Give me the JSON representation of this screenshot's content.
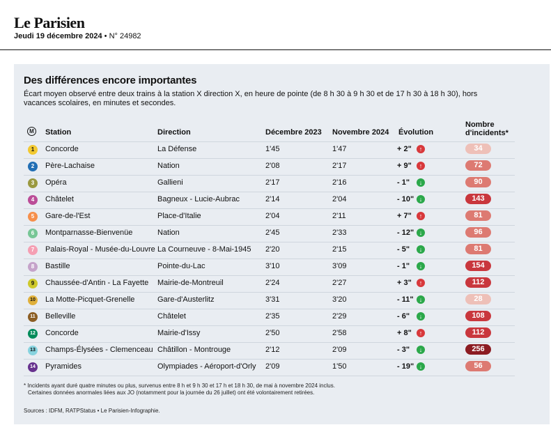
{
  "masthead": {
    "logo": "Le Parisien",
    "date": "Jeudi 19 décembre 2024",
    "separator": "•",
    "issue": "N° 24982"
  },
  "chart_data": {
    "type": "table",
    "title": "Des différences encore importantes",
    "subtitle": "Écart moyen observé entre deux trains à la station X direction X, en heure de pointe (de 8 h 30 à 9 h 30 et de 17 h 30 à 18 h 30), hors vacances scolaires, en minutes et secondes.",
    "columns": {
      "metro_symbol": "M",
      "station": "Station",
      "direction": "Direction",
      "dec2023": "Décembre 2023",
      "nov2024": "Novembre 2024",
      "evolution": "Évolution",
      "incidents_line1": "Nombre",
      "incidents_line2": "d'incidents*"
    },
    "rows": [
      {
        "line": "1",
        "line_color": "#f2c931",
        "line_text_color": "#111",
        "station": "Concorde",
        "direction": "La Défense",
        "dec2023": "1'45",
        "nov2024": "1'47",
        "evolution": "+ 2\"",
        "trend": "up",
        "incidents": 34
      },
      {
        "line": "2",
        "line_color": "#216eb4",
        "line_text_color": "#fff",
        "station": "Père-Lachaise",
        "direction": "Nation",
        "dec2023": "2'08",
        "nov2024": "2'17",
        "evolution": "+ 9\"",
        "trend": "up",
        "incidents": 72
      },
      {
        "line": "3",
        "line_color": "#9a9940",
        "line_text_color": "#fff",
        "station": "Opéra",
        "direction": "Gallieni",
        "dec2023": "2'17",
        "nov2024": "2'16",
        "evolution": "- 1\"",
        "trend": "down",
        "incidents": 90
      },
      {
        "line": "4",
        "line_color": "#bb4d98",
        "line_text_color": "#fff",
        "station": "Châtelet",
        "direction": "Bagneux - Lucie-Aubrac",
        "dec2023": "2'14",
        "nov2024": "2'04",
        "evolution": "- 10\"",
        "trend": "down",
        "incidents": 143
      },
      {
        "line": "5",
        "line_color": "#f68f4b",
        "line_text_color": "#fff",
        "station": "Gare-de-l'Est",
        "direction": "Place-d'Italie",
        "dec2023": "2'04",
        "nov2024": "2'11",
        "evolution": "+ 7\"",
        "trend": "up",
        "incidents": 81
      },
      {
        "line": "6",
        "line_color": "#77c696",
        "line_text_color": "#fff",
        "station": "Montparnasse-Bienvenüe",
        "direction": "Nation",
        "dec2023": "2'45",
        "nov2024": "2'33",
        "evolution": "- 12\"",
        "trend": "down",
        "incidents": 96
      },
      {
        "line": "7",
        "line_color": "#f59fb3",
        "line_text_color": "#fff",
        "station": "Palais-Royal - Musée-du-Louvre",
        "direction": "La Courneuve - 8-Mai-1945",
        "dec2023": "2'20",
        "nov2024": "2'15",
        "evolution": "- 5\"",
        "trend": "down",
        "incidents": 81
      },
      {
        "line": "8",
        "line_color": "#c5a3ca",
        "line_text_color": "#fff",
        "station": "Bastille",
        "direction": "Pointe-du-Lac",
        "dec2023": "3'10",
        "nov2024": "3'09",
        "evolution": "- 1\"",
        "trend": "down",
        "incidents": 154
      },
      {
        "line": "9",
        "line_color": "#cec92b",
        "line_text_color": "#111",
        "station": "Chaussée-d'Antin - La Fayette",
        "direction": "Mairie-de-Montreuil",
        "dec2023": "2'24",
        "nov2024": "2'27",
        "evolution": "+ 3\"",
        "trend": "up",
        "incidents": 112
      },
      {
        "line": "10",
        "line_color": "#e0b03b",
        "line_text_color": "#111",
        "station": "La Motte-Picquet-Grenelle",
        "direction": "Gare-d'Austerlitz",
        "dec2023": "3'31",
        "nov2024": "3'20",
        "evolution": "- 11\"",
        "trend": "down",
        "incidents": 28
      },
      {
        "line": "11",
        "line_color": "#8c5e24",
        "line_text_color": "#fff",
        "station": "Belleville",
        "direction": "Châtelet",
        "dec2023": "2'35",
        "nov2024": "2'29",
        "evolution": "- 6\"",
        "trend": "down",
        "incidents": 108
      },
      {
        "line": "12",
        "line_color": "#008b5a",
        "line_text_color": "#fff",
        "station": "Concorde",
        "direction": "Mairie-d'Issy",
        "dec2023": "2'50",
        "nov2024": "2'58",
        "evolution": "+ 8\"",
        "trend": "up",
        "incidents": 112
      },
      {
        "line": "13",
        "line_color": "#87d3df",
        "line_text_color": "#111",
        "station": "Champs-Élysées - Clemenceau",
        "direction": "Châtillon - Montrouge",
        "dec2023": "2'12",
        "nov2024": "2'09",
        "evolution": "- 3\"",
        "trend": "down",
        "incidents": 256
      },
      {
        "line": "14",
        "line_color": "#67328e",
        "line_text_color": "#fff",
        "station": "Pyramides",
        "direction": "Olympiades - Aéroport-d'Orly",
        "dec2023": "2'09",
        "nov2024": "1'50",
        "evolution": "- 19\"",
        "trend": "down",
        "incidents": 56
      }
    ],
    "trend_colors": {
      "up": "#d8383b",
      "down": "#2ba84a"
    },
    "incident_colors": {
      "low": "#eec0b8",
      "mid": "#dd7a72",
      "high": "#c9373d",
      "max": "#8c1c22"
    }
  },
  "footnotes": {
    "line1": "* Incidents ayant duré quatre minutes ou plus, survenus entre 8 h et 9 h 30 et 17 h et 18 h 30, de mai à novembre 2024 inclus.",
    "line2": "Certaines données anormales liées aux JO (notamment pour la journée du 26 juillet) ont été volontairement retirées.",
    "sources": "Sources : IDFM, RATPStatus • Le Parisien-Infographie."
  }
}
